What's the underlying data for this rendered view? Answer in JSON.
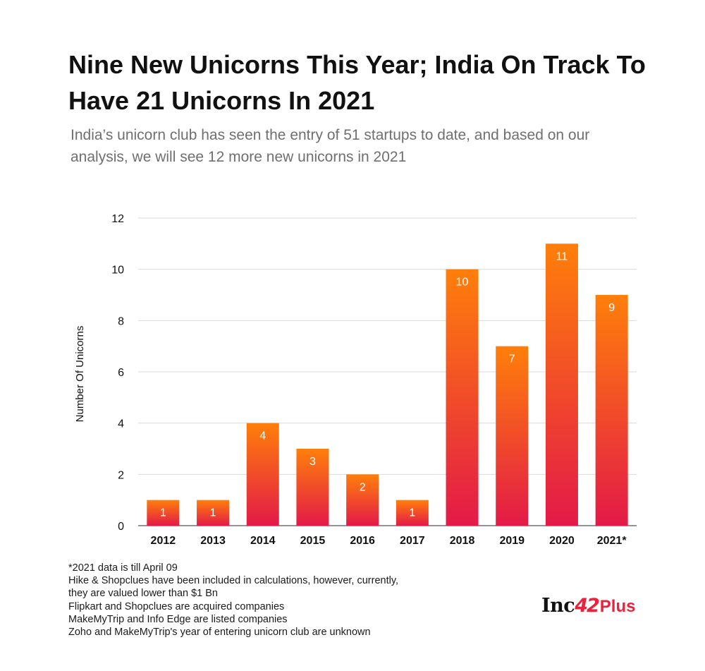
{
  "header": {
    "title": "Nine New Unicorns This Year; India On Track To Have 21 Unicorns In 2021",
    "subtitle": "India’s unicorn club has seen the entry of 51 startups to date, and based on our analysis, we will see 12 more new unicorns in 2021"
  },
  "chart_data": {
    "type": "bar",
    "categories": [
      "2012",
      "2013",
      "2014",
      "2015",
      "2016",
      "2017",
      "2018",
      "2019",
      "2020",
      "2021*"
    ],
    "values": [
      1,
      1,
      4,
      3,
      2,
      1,
      10,
      7,
      11,
      9
    ],
    "ylabel": "Number Of Unicorns",
    "xlabel": "",
    "ylim": [
      0,
      12
    ],
    "yticks": [
      0,
      2,
      4,
      6,
      8,
      10,
      12
    ],
    "grid": true,
    "data_labels": true,
    "colors": {
      "bar_top": "#ff7f0a",
      "bar_bottom": "#e31a48",
      "grid": "#d9d9d9",
      "label": "#ffffff"
    }
  },
  "notes": [
    "*2021 data is till April 09",
    "Hike & Shopclues have been included in calculations, however, currently,",
    "they are valued lower than $1 Bn",
    "Flipkart and Shopclues are acquired companies",
    "MakeMyTrip and Info Edge are listed companies",
    "Zoho and MakeMyTrip's year of entering unicorn club are unknown"
  ],
  "logo": {
    "inc": "Inc",
    "num": "42",
    "plus": "Plus"
  }
}
